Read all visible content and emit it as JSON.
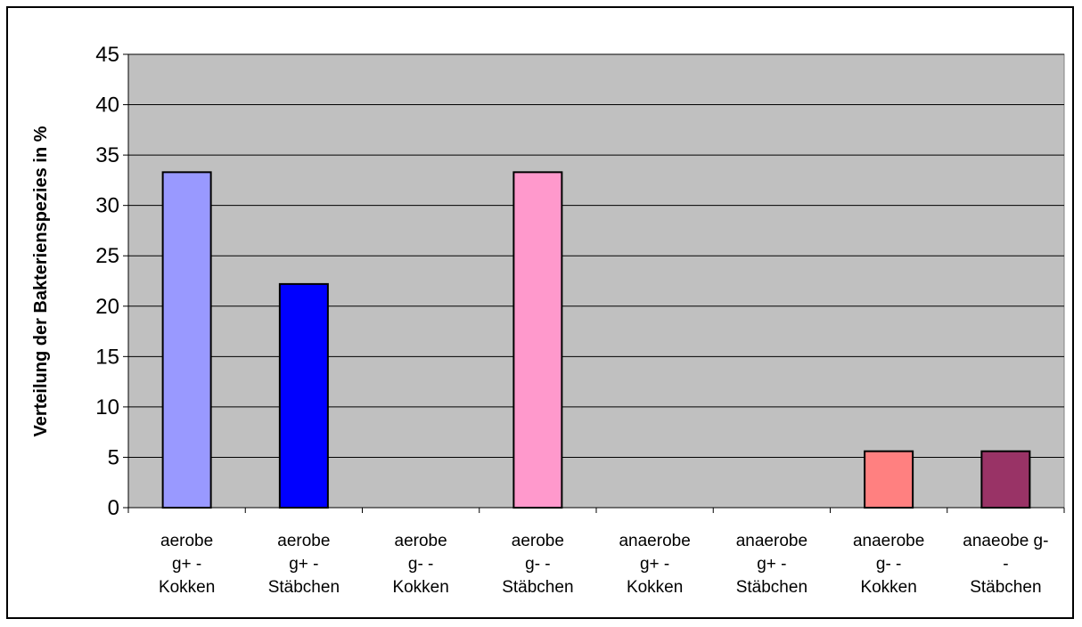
{
  "chart_data": {
    "type": "bar",
    "title": "",
    "xlabel": "",
    "ylabel": "Verteilung der Bakterienspezies in %",
    "ylim": [
      0,
      45
    ],
    "yticks": [
      0,
      5,
      10,
      15,
      20,
      25,
      30,
      35,
      40,
      45
    ],
    "grid": true,
    "legend": "none",
    "plot_background": "#C0C0C0",
    "categories": [
      [
        "aerobe",
        "g+ -",
        "Kokken"
      ],
      [
        "aerobe",
        "g+ -",
        "Stäbchen"
      ],
      [
        "aerobe",
        "g- -",
        "Kokken"
      ],
      [
        "aerobe",
        "g- -",
        "Stäbchen"
      ],
      [
        "anaerobe",
        "g+ -",
        "Kokken"
      ],
      [
        "anaerobe",
        "g+ -",
        "Stäbchen"
      ],
      [
        "anaerobe",
        "g- -",
        "Kokken"
      ],
      [
        "anaeobe g-",
        "-",
        "Stäbchen"
      ]
    ],
    "values": [
      33.3,
      22.2,
      0,
      33.3,
      0,
      0,
      5.6,
      5.6
    ],
    "colors": [
      "#9999FF",
      "#0000FF",
      "#9999FF",
      "#FF99CC",
      "#9999FF",
      "#9999FF",
      "#FF8080",
      "#993366"
    ]
  }
}
